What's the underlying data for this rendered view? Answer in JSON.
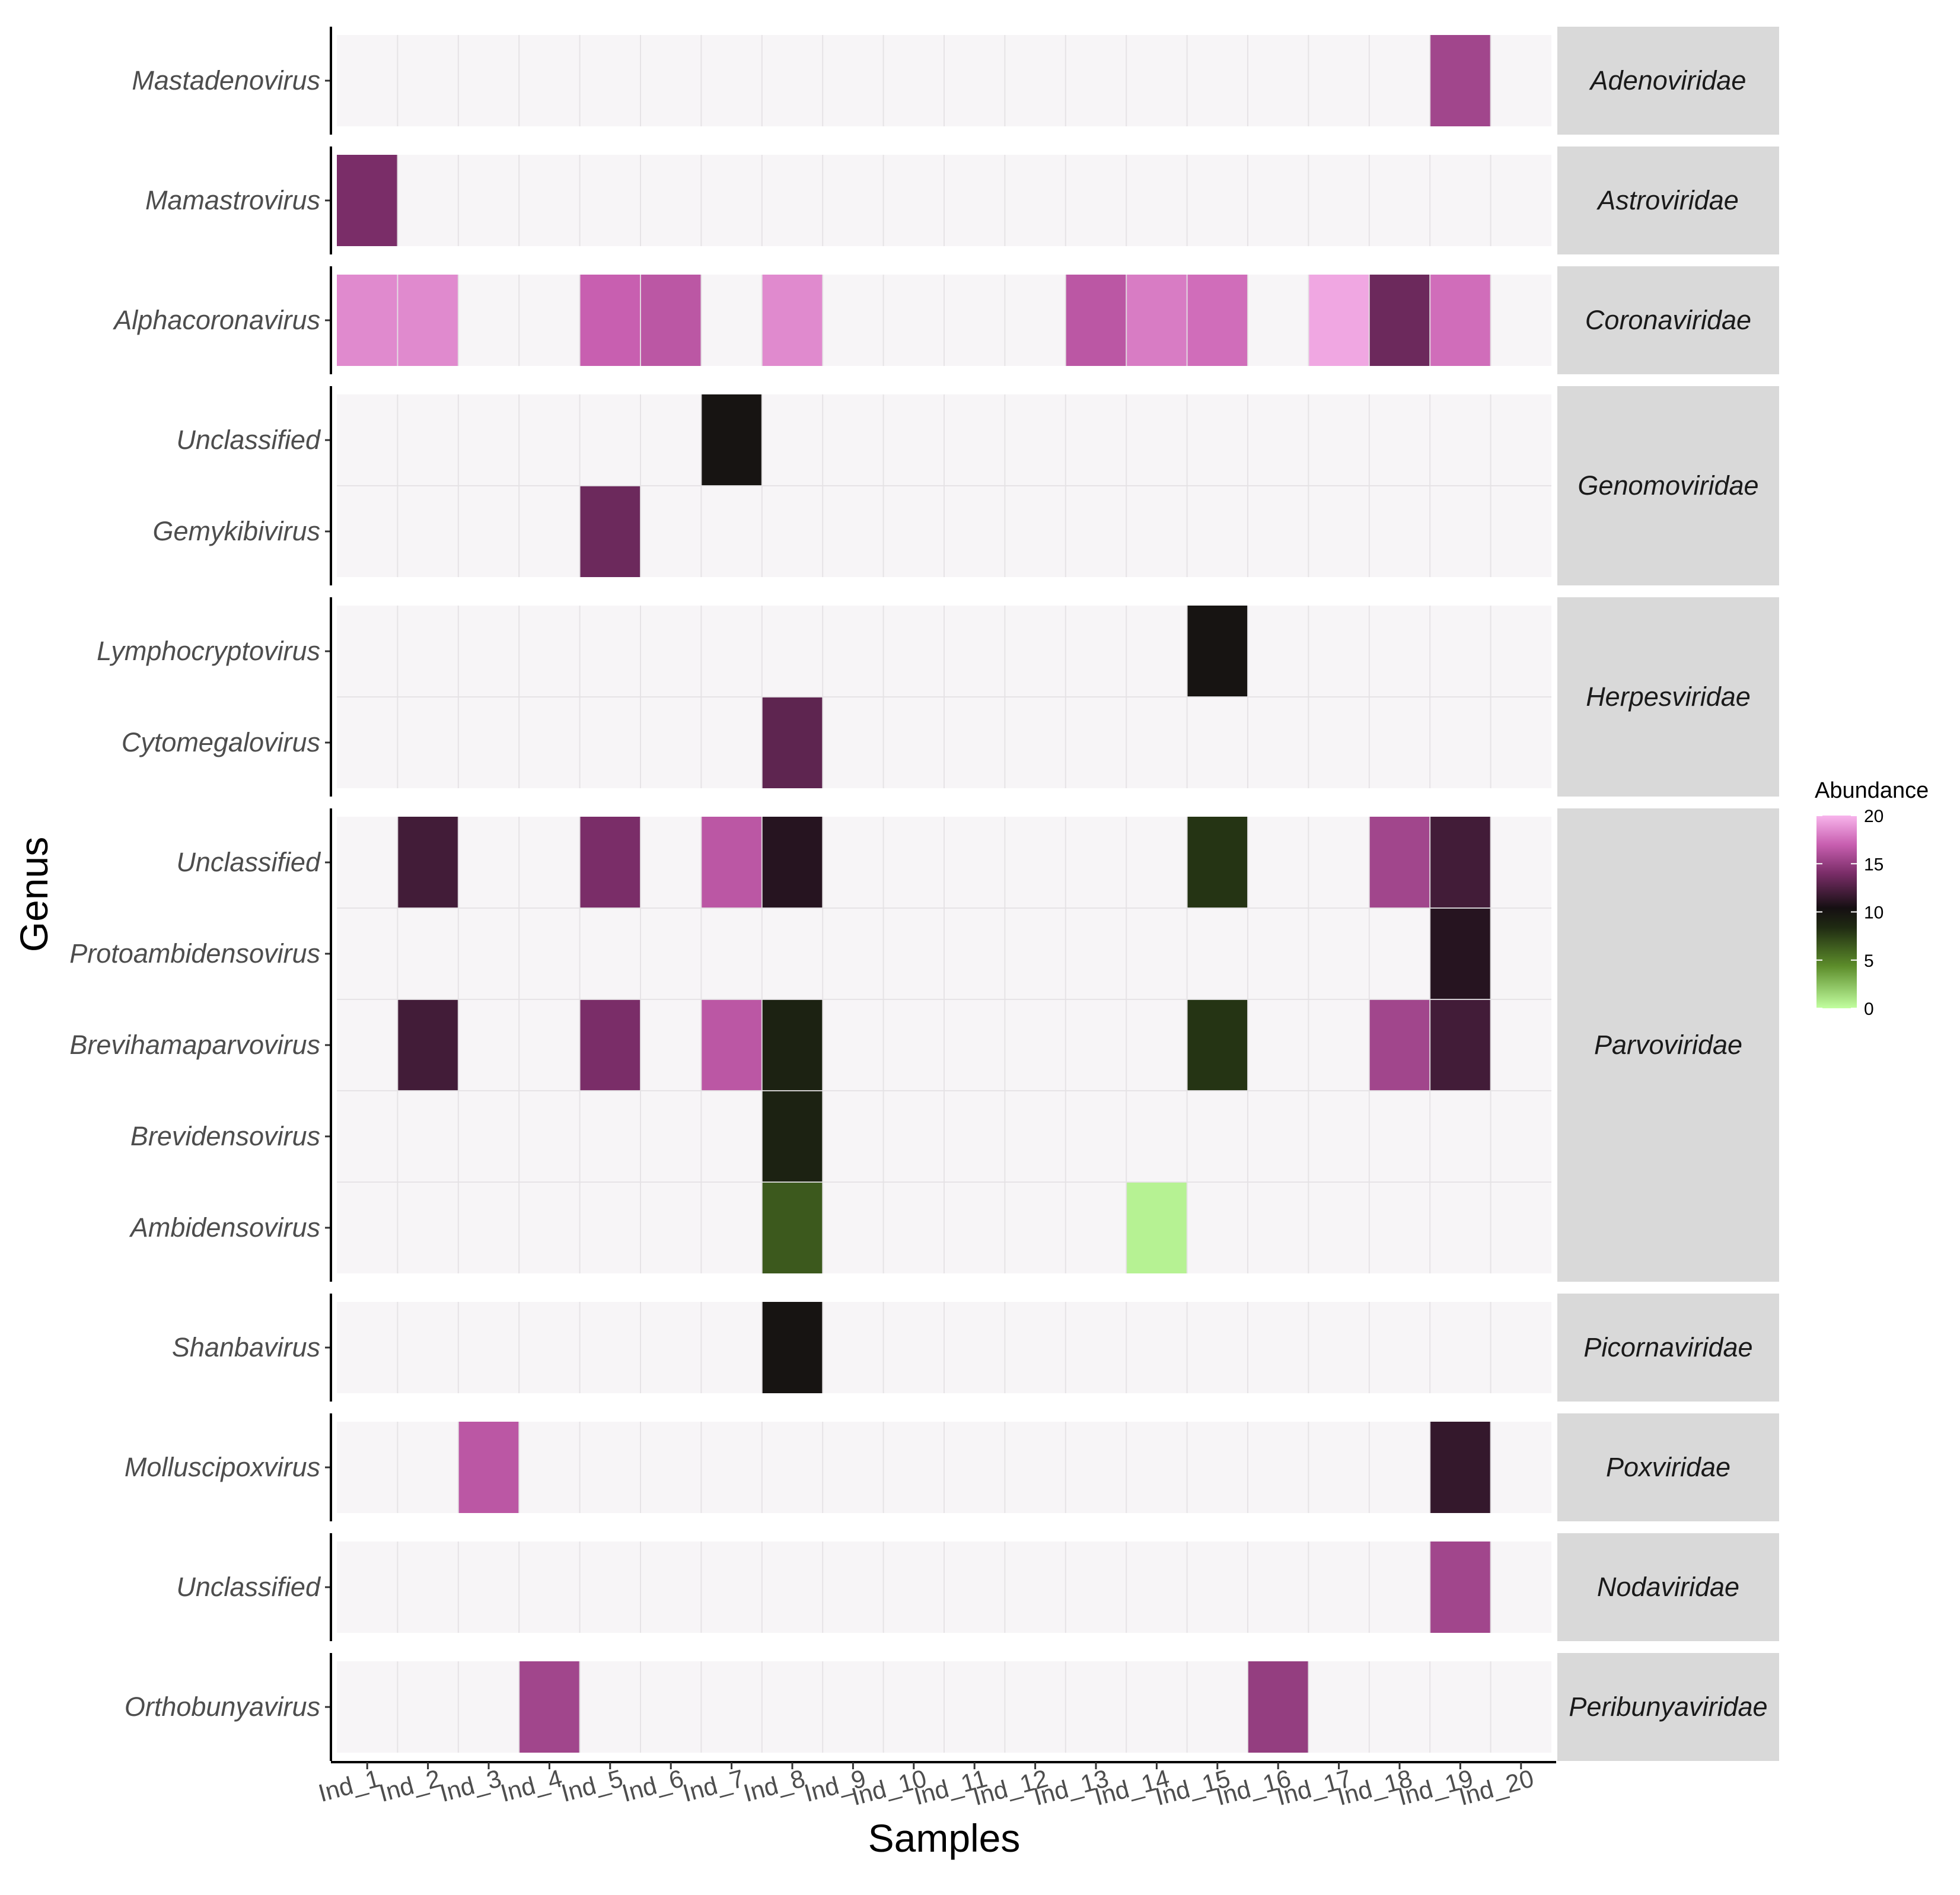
{
  "chart_data": {
    "type": "heatmap",
    "title": "",
    "xlabel": "Samples",
    "ylabel": "Genus",
    "samples": [
      "Ind_1",
      "Ind_2",
      "Ind_3",
      "Ind_4",
      "Ind_5",
      "Ind_6",
      "Ind_7",
      "Ind_8",
      "Ind_9",
      "Ind_10",
      "Ind_11",
      "Ind_12",
      "Ind_13",
      "Ind_14",
      "Ind_15",
      "Ind_16",
      "Ind_17",
      "Ind_18",
      "Ind_19",
      "Ind_20"
    ],
    "legend": {
      "title": "Abundance",
      "ticks": [
        "20",
        "15",
        "10",
        "5",
        "0"
      ],
      "range": [
        0,
        20
      ]
    },
    "colors": {
      "empty": "#f7f5f7",
      "grid": "#e3e1e3",
      "strip": "#d9d9d9",
      "scale": [
        "#c2ffa0",
        "#5c8c2a",
        "#1f2a12",
        "#150f12",
        "#7a2d68",
        "#c85fb0",
        "#f8b5ec"
      ]
    },
    "panels": [
      {
        "family": "Adenoviridae",
        "rows": [
          {
            "genus": "Mastadenovirus",
            "values": [
              0,
              0,
              0,
              0,
              0,
              0,
              0,
              0,
              0,
              0,
              0,
              0,
              0,
              0,
              0,
              0,
              0,
              0,
              15.5,
              0
            ]
          }
        ]
      },
      {
        "family": "Astroviridae",
        "rows": [
          {
            "genus": "Mamastrovirus",
            "values": [
              14,
              0,
              0,
              0,
              0,
              0,
              0,
              0,
              0,
              0,
              0,
              0,
              0,
              0,
              0,
              0,
              0,
              0,
              0,
              0
            ]
          }
        ]
      },
      {
        "family": "Coronaviridae",
        "rows": [
          {
            "genus": "Alphacoronavirus",
            "values": [
              18.5,
              18.5,
              0,
              0,
              17,
              16.5,
              0,
              18.5,
              0,
              0,
              0,
              0,
              16.5,
              18,
              17.5,
              0,
              19.5,
              13.5,
              17.5,
              0
            ]
          }
        ]
      },
      {
        "family": "Genomoviridae",
        "rows": [
          {
            "genus": "Unclassified",
            "values": [
              0,
              0,
              0,
              0,
              0,
              0,
              10,
              0,
              0,
              0,
              0,
              0,
              0,
              0,
              0,
              0,
              0,
              0,
              0,
              0
            ]
          },
          {
            "genus": "Gemykibivirus",
            "values": [
              0,
              0,
              0,
              0,
              13.5,
              0,
              0,
              0,
              0,
              0,
              0,
              0,
              0,
              0,
              0,
              0,
              0,
              0,
              0,
              0
            ]
          }
        ]
      },
      {
        "family": "Herpesviridae",
        "rows": [
          {
            "genus": "Lymphocryptovirus",
            "values": [
              0,
              0,
              0,
              0,
              0,
              0,
              0,
              0,
              0,
              0,
              0,
              0,
              0,
              0,
              10,
              0,
              0,
              0,
              0,
              0
            ]
          },
          {
            "genus": "Cytomegalovirus",
            "values": [
              0,
              0,
              0,
              0,
              0,
              0,
              0,
              13,
              0,
              0,
              0,
              0,
              0,
              0,
              0,
              0,
              0,
              0,
              0,
              0
            ]
          }
        ]
      },
      {
        "family": "Parvoviridae",
        "rows": [
          {
            "genus": "Unclassified",
            "values": [
              0,
              12,
              0,
              0,
              14,
              0,
              16.5,
              11,
              0,
              0,
              0,
              0,
              0,
              0,
              8,
              0,
              0,
              15.5,
              12,
              0
            ]
          },
          {
            "genus": "Protoambidensovirus",
            "values": [
              0,
              0,
              0,
              0,
              0,
              0,
              0,
              0,
              0,
              0,
              0,
              0,
              0,
              0,
              0,
              0,
              0,
              0,
              11,
              0
            ]
          },
          {
            "genus": "Brevihamaparvovirus",
            "values": [
              0,
              12,
              0,
              0,
              14,
              0,
              16.5,
              9,
              0,
              0,
              0,
              0,
              0,
              0,
              8,
              0,
              0,
              15.5,
              12,
              0
            ]
          },
          {
            "genus": "Brevidensovirus",
            "values": [
              0,
              0,
              0,
              0,
              0,
              0,
              0,
              9,
              0,
              0,
              0,
              0,
              0,
              0,
              0,
              0,
              0,
              0,
              0,
              0
            ]
          },
          {
            "genus": "Ambidensovirus",
            "values": [
              0,
              0,
              0,
              0,
              0,
              0,
              0,
              6.5,
              0,
              0,
              0,
              0,
              0,
              0.5,
              0,
              0,
              0,
              0,
              0,
              0
            ]
          }
        ]
      },
      {
        "family": "Picornaviridae",
        "rows": [
          {
            "genus": "Shanbavirus",
            "values": [
              0,
              0,
              0,
              0,
              0,
              0,
              0,
              10,
              0,
              0,
              0,
              0,
              0,
              0,
              0,
              0,
              0,
              0,
              0,
              0
            ]
          }
        ]
      },
      {
        "family": "Poxviridae",
        "rows": [
          {
            "genus": "Molluscipoxvirus",
            "values": [
              0,
              0,
              16.5,
              0,
              0,
              0,
              0,
              0,
              0,
              0,
              0,
              0,
              0,
              0,
              0,
              0,
              0,
              0,
              11.5,
              0
            ]
          }
        ]
      },
      {
        "family": "Nodaviridae",
        "rows": [
          {
            "genus": "Unclassified",
            "values": [
              0,
              0,
              0,
              0,
              0,
              0,
              0,
              0,
              0,
              0,
              0,
              0,
              0,
              0,
              0,
              0,
              0,
              0,
              15.5,
              0
            ]
          }
        ]
      },
      {
        "family": "Peribunyaviridae",
        "rows": [
          {
            "genus": "Orthobunyavirus",
            "values": [
              0,
              0,
              0,
              15.5,
              0,
              0,
              0,
              0,
              0,
              0,
              0,
              0,
              0,
              0,
              0,
              15,
              0,
              0,
              0,
              0
            ]
          }
        ]
      }
    ]
  }
}
